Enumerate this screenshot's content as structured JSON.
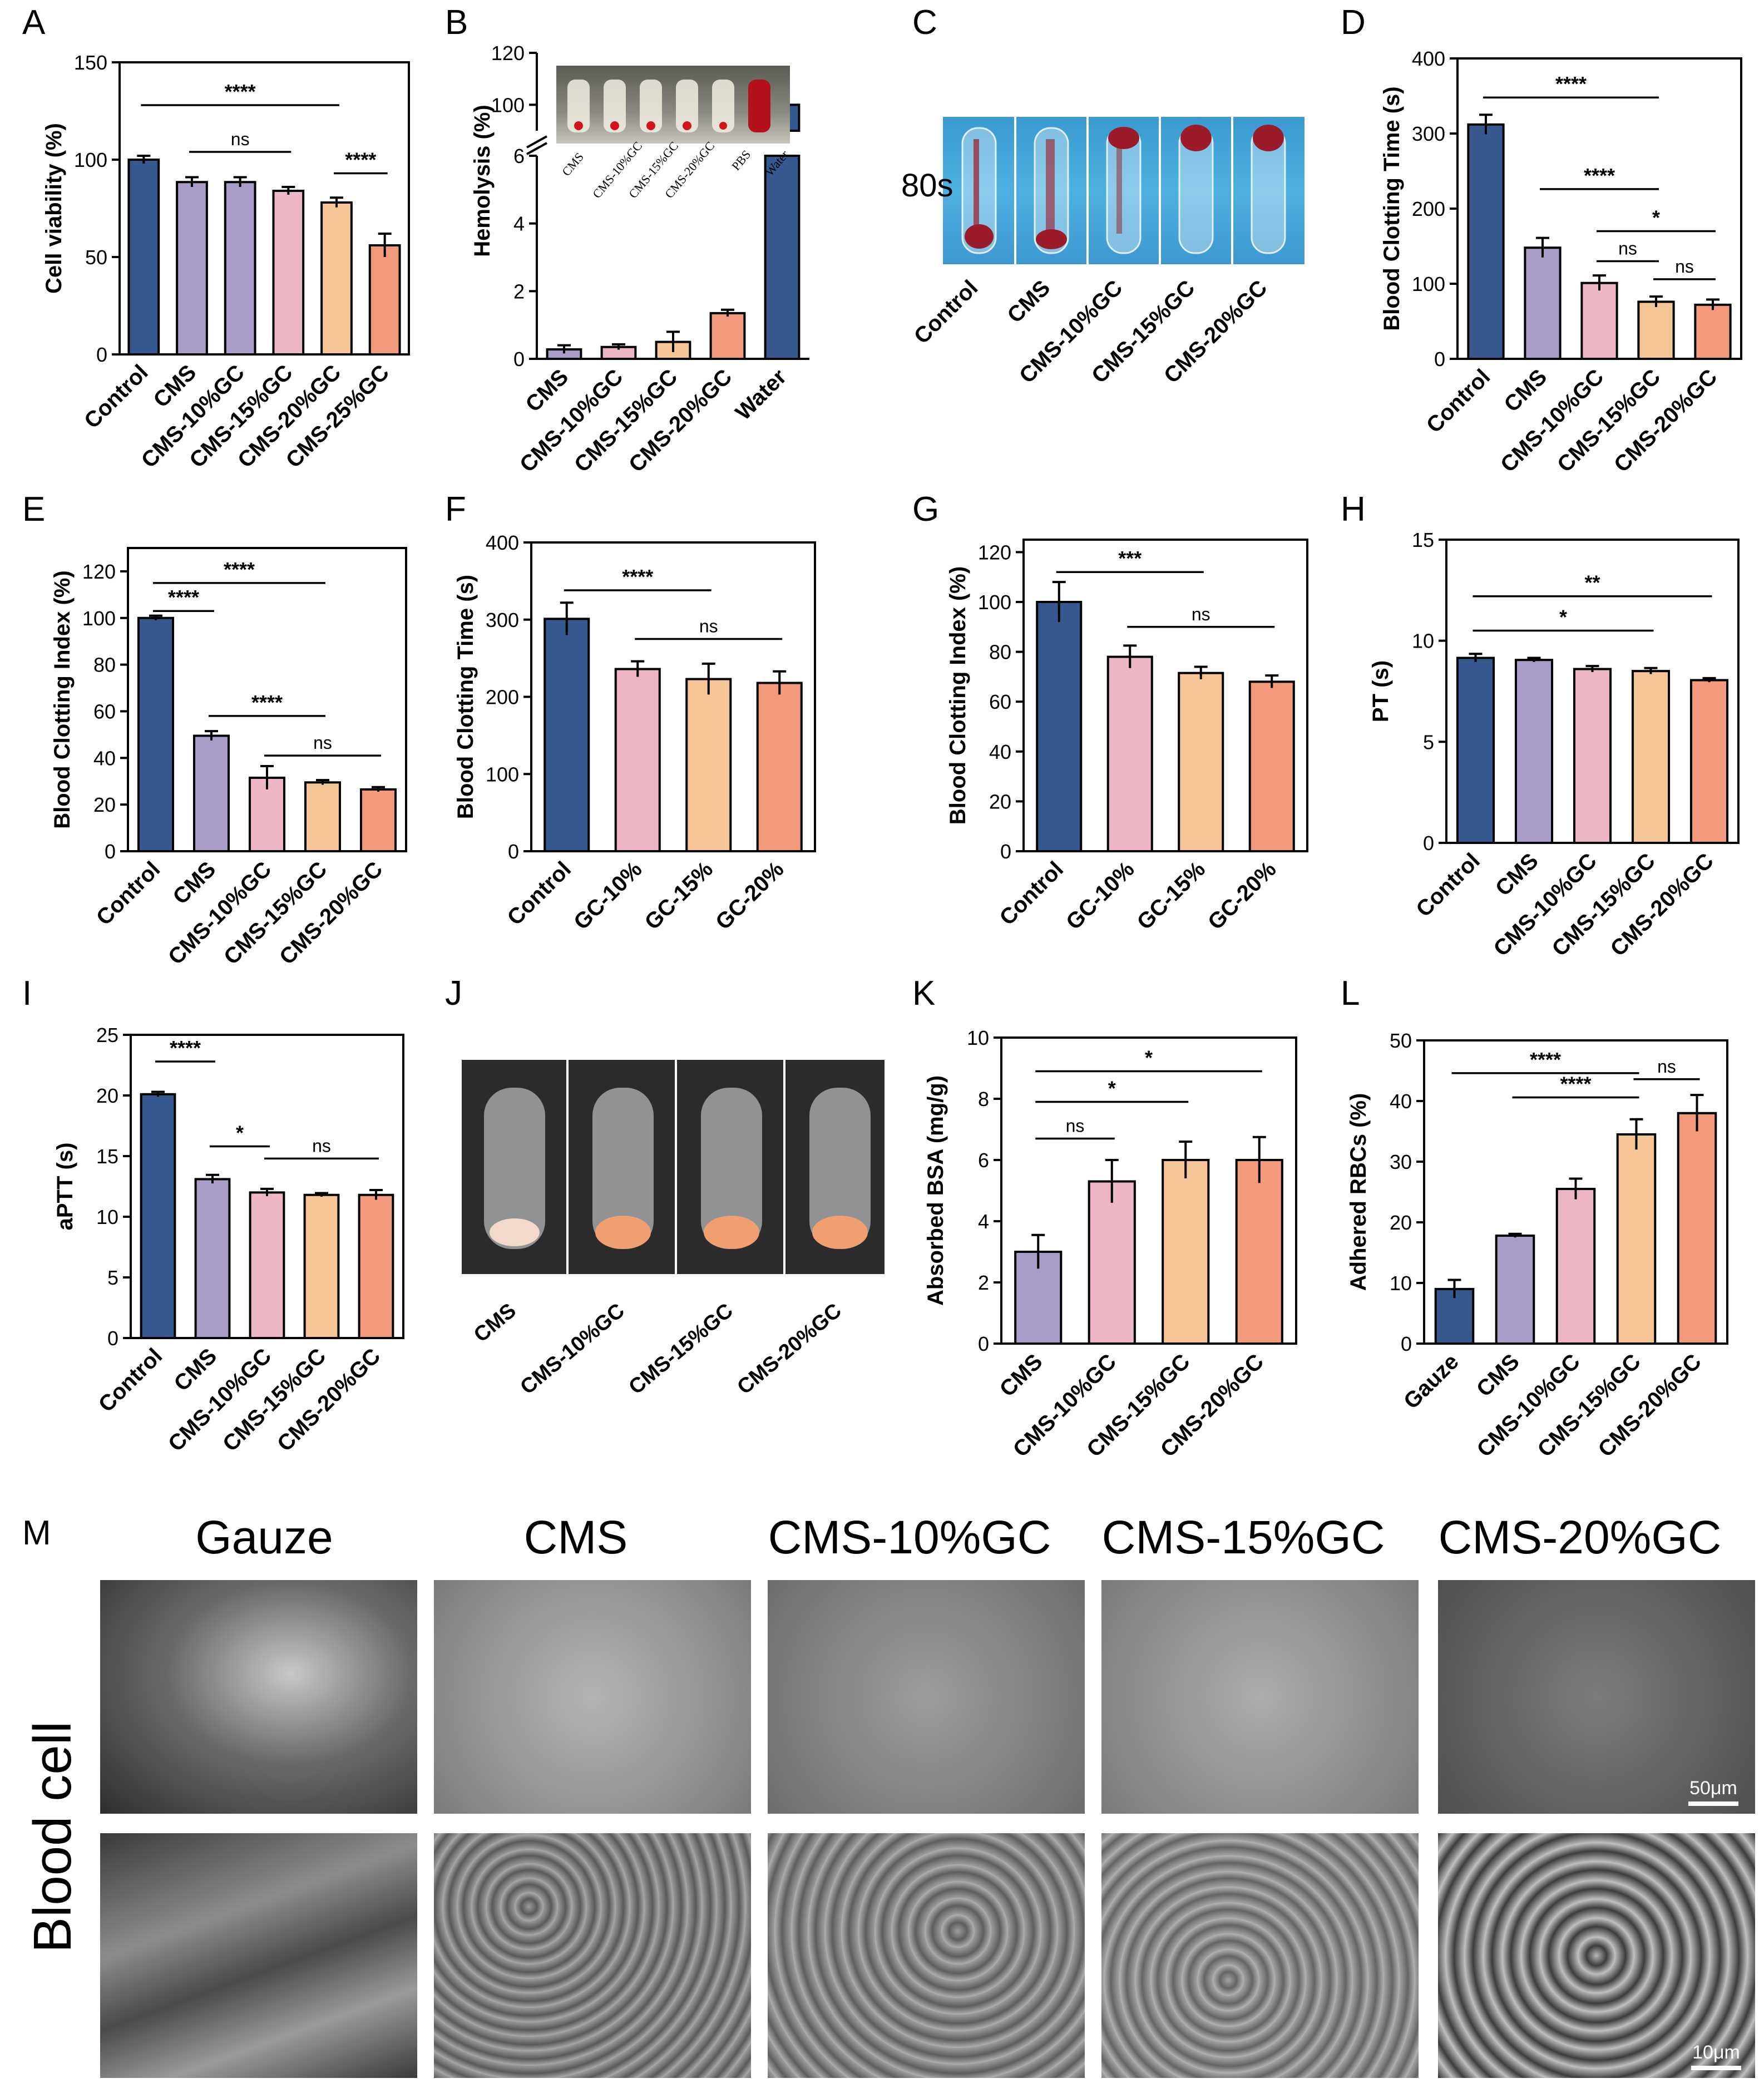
{
  "palette": {
    "navy": "#35588f",
    "lavender": "#a99cc8",
    "pink": "#ecb6c4",
    "peach": "#f6c595",
    "salmon": "#f39a7c"
  },
  "chart_data": [
    {
      "panel": "A",
      "type": "bar",
      "categories": [
        "Control",
        "CMS",
        "CMS-10%GC",
        "CMS-15%GC",
        "CMS-20%GC",
        "CMS-25%GC"
      ],
      "values": [
        100,
        88.5,
        88.5,
        84,
        78,
        56
      ],
      "errors": [
        2,
        2.5,
        2.5,
        2,
        2.5,
        6
      ],
      "colors": [
        "navy",
        "lavender",
        "lavender",
        "pink",
        "peach",
        "salmon"
      ],
      "ylabel": "Cell viability (%)",
      "ylim": [
        0,
        150
      ],
      "yticks": [
        0,
        50,
        100,
        150
      ],
      "sig": [
        {
          "from": 0,
          "to": 4,
          "text": "****",
          "y": 128
        },
        {
          "from": 1,
          "to": 3,
          "text": "ns",
          "y": 104
        },
        {
          "from": 4,
          "to": 5,
          "text": "****",
          "y": 93
        }
      ]
    },
    {
      "panel": "B",
      "type": "bar",
      "categories": [
        "CMS",
        "CMS-10%GC",
        "CMS-15%GC",
        "CMS-20%GC",
        "Water"
      ],
      "values": [
        0.28,
        0.35,
        0.5,
        1.35,
        100
      ],
      "errors": [
        0.12,
        0.08,
        0.3,
        0.1,
        0
      ],
      "colors": [
        "lavender",
        "pink",
        "peach",
        "salmon",
        "navy"
      ],
      "ylabel": "Hemolysis (%)",
      "broken_axis": {
        "lower": [
          0,
          6
        ],
        "upper": [
          90,
          120
        ]
      },
      "yticks_lower": [
        0,
        2,
        4,
        6
      ],
      "yticks_upper": [
        100,
        120
      ],
      "inset_labels": [
        "CMS",
        "CMS-10%GC",
        "CMS-15%GC",
        "CMS-20%GC",
        "PBS",
        "Water"
      ]
    },
    {
      "panel": "D",
      "type": "bar",
      "categories": [
        "Control",
        "CMS",
        "CMS-10%GC",
        "CMS-15%GC",
        "CMS-20%GC"
      ],
      "values": [
        312,
        148,
        101,
        76,
        72
      ],
      "errors": [
        13,
        13,
        10,
        7,
        7
      ],
      "colors": [
        "navy",
        "lavender",
        "pink",
        "peach",
        "salmon"
      ],
      "ylabel": "Blood Clotting Time (s)",
      "ylim": [
        0,
        400
      ],
      "yticks": [
        0,
        100,
        200,
        300,
        400
      ],
      "sig": [
        {
          "from": 0,
          "to": 3,
          "text": "****",
          "y": 348
        },
        {
          "from": 1,
          "to": 3,
          "text": "****",
          "y": 226
        },
        {
          "from": 2,
          "to": 4,
          "text": "*",
          "y": 170
        },
        {
          "from": 2,
          "to": 3,
          "text": "ns",
          "y": 130
        },
        {
          "from": 3,
          "to": 4,
          "text": "ns",
          "y": 106
        }
      ]
    },
    {
      "panel": "E",
      "type": "bar",
      "categories": [
        "Control",
        "CMS",
        "CMS-10%GC",
        "CMS-15%GC",
        "CMS-20%GC"
      ],
      "values": [
        100,
        49.5,
        31.5,
        29.5,
        26.5
      ],
      "errors": [
        1,
        2,
        5,
        1,
        1
      ],
      "colors": [
        "navy",
        "lavender",
        "pink",
        "peach",
        "salmon"
      ],
      "ylabel": "Blood Clotting Index (%)",
      "ylim": [
        0,
        130
      ],
      "yticks": [
        0,
        20,
        40,
        60,
        80,
        100,
        120
      ],
      "sig": [
        {
          "from": 0,
          "to": 3,
          "text": "****",
          "y": 115
        },
        {
          "from": 0,
          "to": 1,
          "text": "****",
          "y": 103
        },
        {
          "from": 1,
          "to": 3,
          "text": "****",
          "y": 58
        },
        {
          "from": 2,
          "to": 4,
          "text": "ns",
          "y": 41
        }
      ]
    },
    {
      "panel": "F",
      "type": "bar",
      "categories": [
        "Control",
        "GC-10%",
        "GC-15%",
        "GC-20%"
      ],
      "values": [
        301,
        236,
        223,
        218
      ],
      "errors": [
        21,
        10,
        20,
        15
      ],
      "colors": [
        "navy",
        "pink",
        "peach",
        "salmon"
      ],
      "ylabel": "Blood Clotting Time (s)",
      "ylim": [
        0,
        400
      ],
      "yticks": [
        0,
        100,
        200,
        300,
        400
      ],
      "sig": [
        {
          "from": 0,
          "to": 2,
          "text": "****",
          "y": 338
        },
        {
          "from": 1,
          "to": 3,
          "text": "ns",
          "y": 275
        }
      ]
    },
    {
      "panel": "G",
      "type": "bar",
      "categories": [
        "Control",
        "GC-10%",
        "GC-15%",
        "GC-20%"
      ],
      "values": [
        100,
        78,
        71.5,
        68
      ],
      "errors": [
        8,
        4.5,
        2.5,
        2.5
      ],
      "colors": [
        "navy",
        "pink",
        "peach",
        "salmon"
      ],
      "ylabel": "Blood Clotting Index (%)",
      "ylim": [
        0,
        125
      ],
      "yticks": [
        0,
        20,
        40,
        60,
        80,
        100,
        120
      ],
      "sig": [
        {
          "from": 0,
          "to": 2,
          "text": "***",
          "y": 112
        },
        {
          "from": 1,
          "to": 3,
          "text": "ns",
          "y": 90
        }
      ]
    },
    {
      "panel": "H",
      "type": "bar",
      "categories": [
        "Control",
        "CMS",
        "CMS-10%GC",
        "CMS-15%GC",
        "CMS-20%GC"
      ],
      "values": [
        9.15,
        9.05,
        8.6,
        8.5,
        8.05
      ],
      "errors": [
        0.2,
        0.1,
        0.15,
        0.15,
        0.1
      ],
      "colors": [
        "navy",
        "lavender",
        "pink",
        "peach",
        "salmon"
      ],
      "ylabel": "PT (s)",
      "ylim": [
        0,
        15
      ],
      "yticks": [
        0,
        5,
        10,
        15
      ],
      "sig": [
        {
          "from": 0,
          "to": 4,
          "text": "**",
          "y": 12.2
        },
        {
          "from": 0,
          "to": 3,
          "text": "*",
          "y": 10.5
        }
      ]
    },
    {
      "panel": "I",
      "type": "bar",
      "categories": [
        "Control",
        "CMS",
        "CMS-10%GC",
        "CMS-15%GC",
        "CMS-20%GC"
      ],
      "values": [
        20.1,
        13.1,
        12,
        11.8,
        11.8
      ],
      "errors": [
        0.2,
        0.35,
        0.3,
        0.15,
        0.4
      ],
      "colors": [
        "navy",
        "lavender",
        "pink",
        "peach",
        "salmon"
      ],
      "ylabel": "aPTT (s)",
      "ylim": [
        0,
        25
      ],
      "yticks": [
        0,
        5,
        10,
        15,
        20,
        25
      ],
      "sig": [
        {
          "from": 0,
          "to": 1,
          "text": "****",
          "y": 22.8
        },
        {
          "from": 1,
          "to": 2,
          "text": "*",
          "y": 15.8
        },
        {
          "from": 2,
          "to": 4,
          "text": "ns",
          "y": 14.8
        }
      ]
    },
    {
      "panel": "K",
      "type": "bar",
      "categories": [
        "CMS",
        "CMS-10%GC",
        "CMS-15%GC",
        "CMS-20%GC"
      ],
      "values": [
        3,
        5.3,
        6,
        6
      ],
      "errors": [
        0.55,
        0.7,
        0.6,
        0.75
      ],
      "colors": [
        "lavender",
        "pink",
        "peach",
        "salmon"
      ],
      "ylabel": "Absorbed BSA (mg/g)",
      "ylim": [
        0,
        10
      ],
      "yticks": [
        0,
        2,
        4,
        6,
        8,
        10
      ],
      "sig": [
        {
          "from": 0,
          "to": 3,
          "text": "*",
          "y": 8.9
        },
        {
          "from": 0,
          "to": 2,
          "text": "*",
          "y": 7.9
        },
        {
          "from": 0,
          "to": 1,
          "text": "ns",
          "y": 6.7
        }
      ]
    },
    {
      "panel": "L",
      "type": "bar",
      "categories": [
        "Gauze",
        "CMS",
        "CMS-10%GC",
        "CMS-15%GC",
        "CMS-20%GC"
      ],
      "values": [
        9,
        17.8,
        25.5,
        34.5,
        38
      ],
      "errors": [
        1.5,
        0.3,
        1.7,
        2.5,
        3
      ],
      "colors": [
        "navy",
        "lavender",
        "pink",
        "peach",
        "salmon"
      ],
      "ylabel": "Adhered RBCs (%)",
      "ylim": [
        0,
        50
      ],
      "yticks": [
        0,
        10,
        20,
        30,
        40,
        50
      ],
      "sig": [
        {
          "from": 0,
          "to": 3,
          "text": "****",
          "y": 44.6
        },
        {
          "from": 1,
          "to": 3,
          "text": "****",
          "y": 40.6
        },
        {
          "from": 3,
          "to": 4,
          "text": "ns",
          "y": 43.6
        }
      ]
    }
  ],
  "photos": {
    "C": {
      "label": "80s",
      "categories": [
        "Control",
        "CMS",
        "CMS-10%GC",
        "CMS-15%GC",
        "CMS-20%GC"
      ]
    },
    "J": {
      "categories": [
        "CMS",
        "CMS-10%GC",
        "CMS-15%GC",
        "CMS-20%GC"
      ]
    }
  },
  "panel_labels": [
    "A",
    "B",
    "C",
    "D",
    "E",
    "F",
    "G",
    "H",
    "I",
    "J",
    "K",
    "L",
    "M"
  ],
  "sem": {
    "titles": [
      "Gauze",
      "CMS",
      "CMS-10%GC",
      "CMS-15%GC",
      "CMS-20%GC"
    ],
    "row_label": "Blood cell",
    "scale_top": "50μm",
    "scale_bottom": "10μm"
  }
}
